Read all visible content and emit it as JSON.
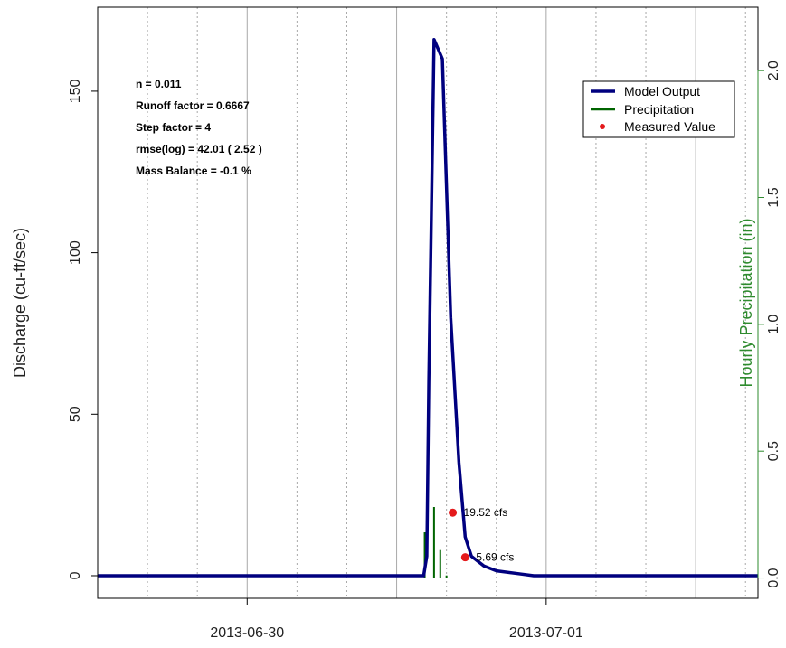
{
  "chart_data": {
    "type": "line",
    "ylabel": "Discharge (cu-ft/sec)",
    "y2label": "Hourly Precipitation (in)",
    "xlim": [
      "2013-06-29 12:00",
      "2013-07-01 17:00"
    ],
    "ylim": [
      -7,
      176
    ],
    "y2lim": [
      -0.08,
      2.25
    ],
    "xticks": [
      "2013-06-30",
      "2013-07-01"
    ],
    "yticks": [
      0,
      50,
      100,
      150
    ],
    "y2ticks": [
      "0.0",
      "0.5",
      "1.0",
      "1.5",
      "2.0"
    ],
    "grid": "vertical",
    "legend": {
      "position": "top-right",
      "entries": [
        "Model Output",
        "Precipitation",
        "Measured Value"
      ]
    },
    "stats": [
      {
        "label": "n =",
        "value": "0.011"
      },
      {
        "label": "Runoff factor =",
        "value": "0.6667"
      },
      {
        "label": "Step factor =",
        "value": "4"
      },
      {
        "label": "rmse(log) =",
        "value": "42.01 ( 2.52 )"
      },
      {
        "label": "Mass Balance =",
        "value": "-0.1 %"
      }
    ],
    "colors": {
      "model": "#00007f",
      "precip": "#006400",
      "measured": "#e41a1c",
      "y2axis": "#2e8b2e",
      "grid": "#a8a8a8"
    },
    "series": [
      {
        "name": "Model Output",
        "type": "line",
        "points": [
          [
            "2013-06-29 12:00",
            0
          ],
          [
            "2013-06-30 14:10",
            0
          ],
          [
            "2013-06-30 14:25",
            6
          ],
          [
            "2013-06-30 14:35",
            60
          ],
          [
            "2013-06-30 15:00",
            166
          ],
          [
            "2013-06-30 15:40",
            160
          ],
          [
            "2013-06-30 16:20",
            80
          ],
          [
            "2013-06-30 17:00",
            35
          ],
          [
            "2013-06-30 17:30",
            12
          ],
          [
            "2013-06-30 18:00",
            6
          ],
          [
            "2013-06-30 19:00",
            3
          ],
          [
            "2013-06-30 20:00",
            1.5
          ],
          [
            "2013-06-30 22:00",
            0.5
          ],
          [
            "2013-06-30 23:00",
            0
          ],
          [
            "2013-07-01 17:00",
            0
          ]
        ]
      },
      {
        "name": "Precipitation",
        "type": "bar",
        "points": [
          [
            "2013-06-30 14:15",
            0.18
          ],
          [
            "2013-06-30 15:00",
            0.28
          ],
          [
            "2013-06-30 15:30",
            0.11
          ],
          [
            "2013-06-30 16:00",
            0.01
          ]
        ]
      },
      {
        "name": "Measured Value",
        "type": "scatter",
        "points": [
          {
            "x": "2013-06-30 16:30",
            "y": 19.52,
            "label": "19.52  cfs"
          },
          {
            "x": "2013-06-30 17:30",
            "y": 5.69,
            "label": "5.69  cfs"
          }
        ]
      }
    ]
  }
}
